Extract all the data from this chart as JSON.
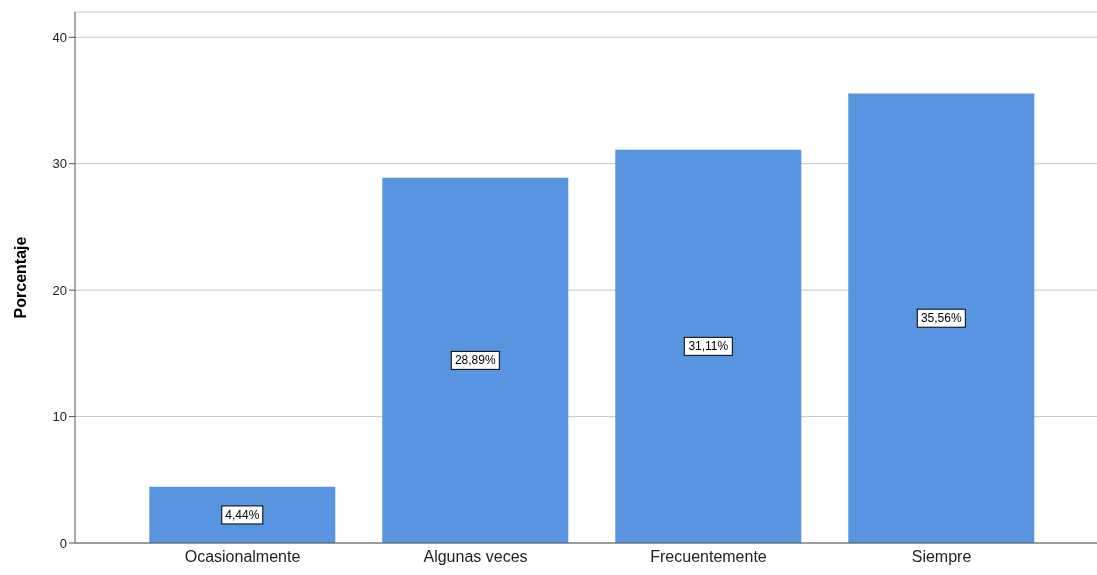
{
  "chart_data": {
    "type": "bar",
    "ylabel": "Porcentaje",
    "categories": [
      "Ocasionalmente",
      "Algunas veces",
      "Frecuentemente",
      "Siempre"
    ],
    "values": [
      4.44,
      28.89,
      31.11,
      35.56
    ],
    "value_labels": [
      "4,44%",
      "28,89%",
      "31,11%",
      "35,56%"
    ],
    "color": "#5894e0",
    "ylim": [
      0,
      42
    ],
    "yticks": [
      0,
      10,
      20,
      30,
      40
    ],
    "grid": "y",
    "legend": false
  }
}
